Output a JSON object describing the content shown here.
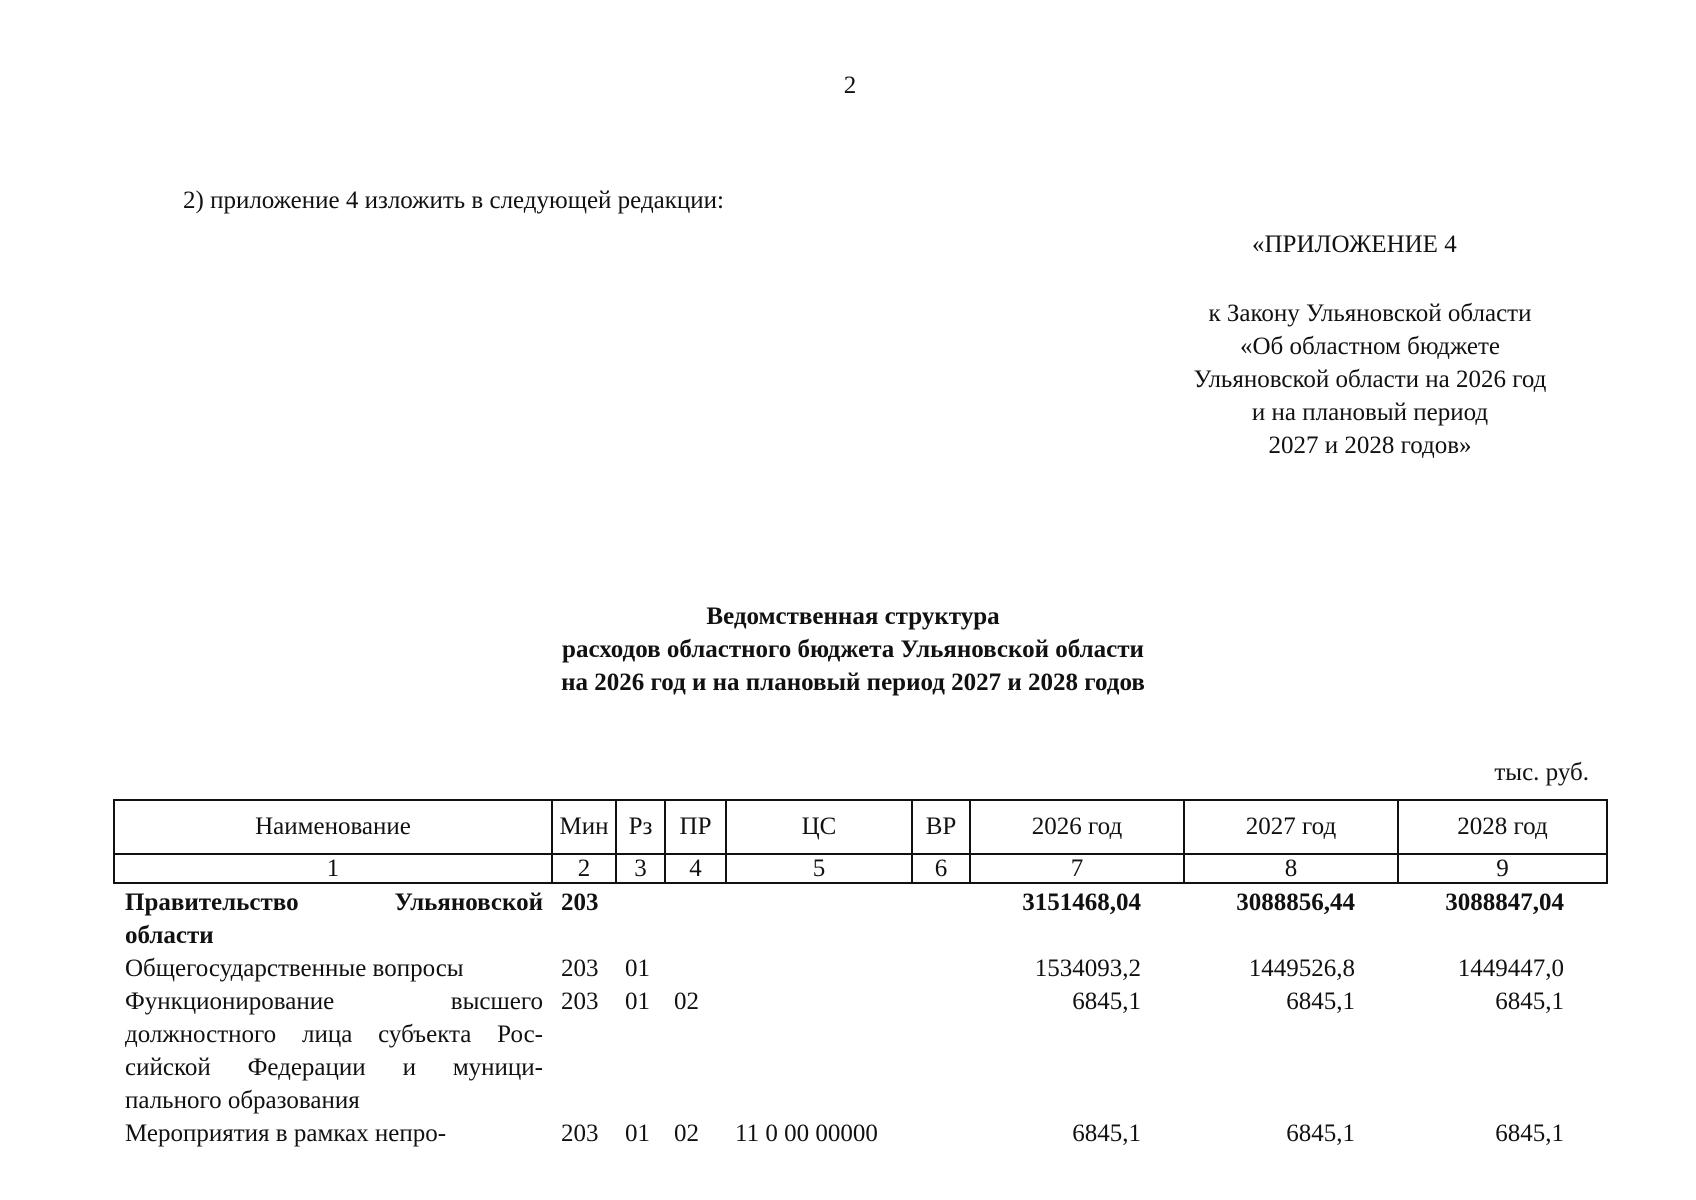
{
  "page_number": "2",
  "intro": "2) приложение 4 изложить в следующей редакции:",
  "appendix_label": "«ПРИЛОЖЕНИЕ 4",
  "reference_lines": [
    "к Закону Ульяновской области",
    "«Об областном бюджете",
    "Ульяновской области на 2026 год",
    "и на плановый период",
    "2027 и 2028 годов»"
  ],
  "title_lines": [
    "Ведомственная структура",
    "расходов областного бюджета Ульяновской области",
    "на 2026 год и на плановый период 2027 и 2028 годов"
  ],
  "units": "тыс. руб.",
  "table": {
    "headers": [
      "Наименование",
      "Мин",
      "Рз",
      "ПР",
      "ЦС",
      "ВР",
      "2026 год",
      "2027 год",
      "2028 год"
    ],
    "column_numbers": [
      "1",
      "2",
      "3",
      "4",
      "5",
      "6",
      "7",
      "8",
      "9"
    ],
    "rows": [
      {
        "name": "Правительство Ульяновской области",
        "min": "203",
        "rz": "",
        "pr": "",
        "cs": "",
        "vr": "",
        "y2026": "3151468,04",
        "y2027": "3088856,44",
        "y2028": "3088847,04",
        "bold": true
      },
      {
        "name": "Общегосударственные вопросы",
        "min": "203",
        "rz": "01",
        "pr": "",
        "cs": "",
        "vr": "",
        "y2026": "1534093,2",
        "y2027": "1449526,8",
        "y2028": "1449447,0",
        "bold": false
      },
      {
        "name": "Функционирование высшего должностного лица субъекта Рос-сийской Федерации и муници-пального образования",
        "min": "203",
        "rz": "01",
        "pr": "02",
        "cs": "",
        "vr": "",
        "y2026": "6845,1",
        "y2027": "6845,1",
        "y2028": "6845,1",
        "bold": false
      },
      {
        "name": "Мероприятия в рамках непро-",
        "min": "203",
        "rz": "01",
        "pr": "02",
        "cs": "11 0 00 00000",
        "vr": "",
        "y2026": "6845,1",
        "y2027": "6845,1",
        "y2028": "6845,1",
        "bold": false
      }
    ]
  }
}
